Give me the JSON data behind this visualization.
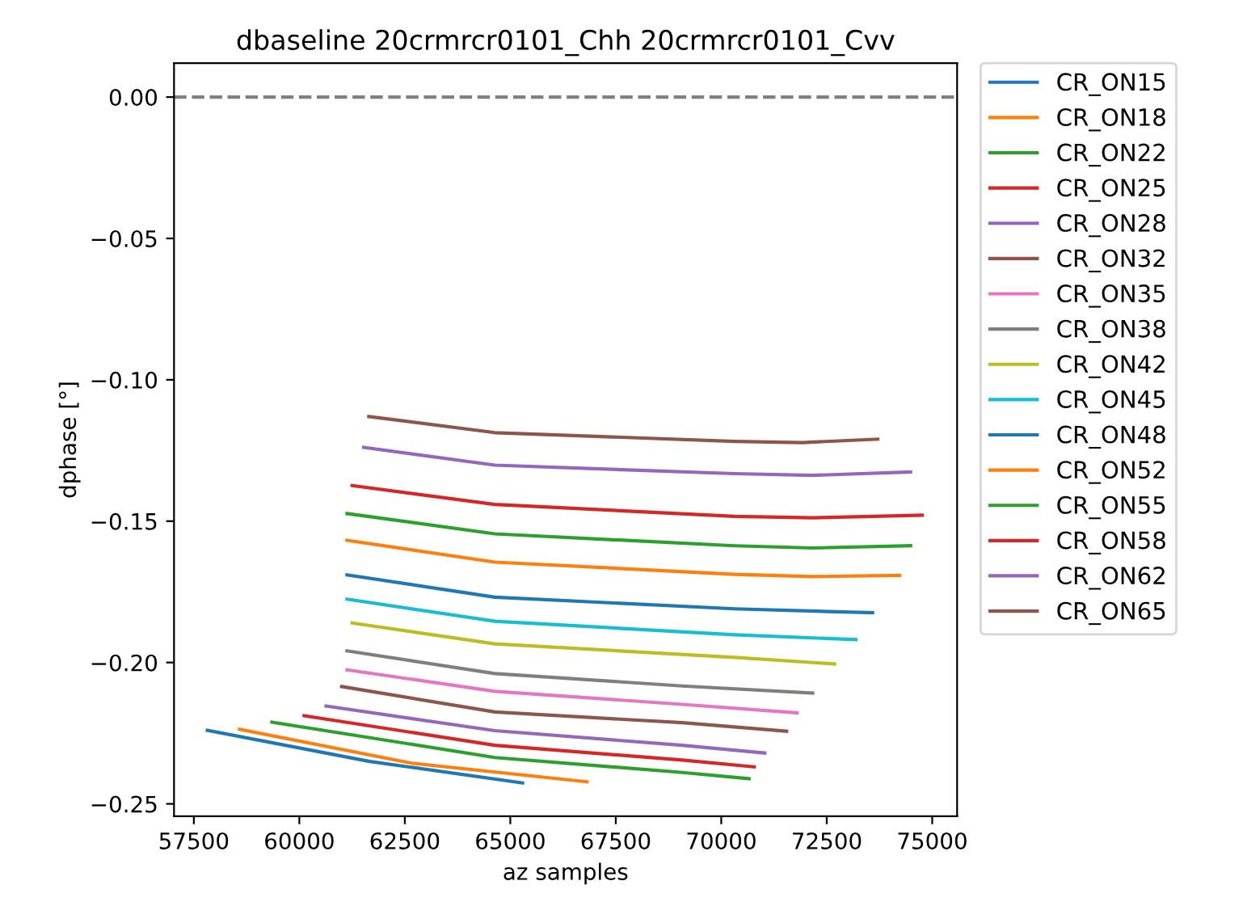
{
  "chart_data": {
    "type": "line",
    "title": "dbaseline 20crmrcr0101_Chh 20crmrcr0101_Cvv",
    "xlabel": "az samples",
    "ylabel": "dphase [°]",
    "xlim": [
      57030,
      75590
    ],
    "ylim": [
      -0.2544,
      0.012
    ],
    "xticks": [
      57500,
      60000,
      62500,
      65000,
      67500,
      70000,
      72500,
      75000
    ],
    "yticks": [
      {
        "value": 0,
        "label": "0.00"
      },
      {
        "value": -0.05,
        "label": "−0.05"
      },
      {
        "value": -0.1,
        "label": "−0.10"
      },
      {
        "value": -0.15,
        "label": "−0.15"
      },
      {
        "value": -0.2,
        "label": "−0.20"
      },
      {
        "value": -0.25,
        "label": "−0.25"
      }
    ],
    "grid": false,
    "legend": "right",
    "marker": "none",
    "line_style": "solid",
    "ref_lines": [
      {
        "axis": "y",
        "value": 0,
        "color": "#808080",
        "line_style": "dashed"
      }
    ],
    "series": [
      {
        "name": "CR_ON15",
        "color": "#1f77b4",
        "x": [
          57819,
          61671,
          65290
        ],
        "values": [
          -0.224,
          -0.235,
          -0.2426
        ]
      },
      {
        "name": "CR_ON18",
        "color": "#ff7f0e",
        "x": [
          58585,
          62660,
          66819
        ],
        "values": [
          -0.2236,
          -0.2356,
          -0.2422
        ]
      },
      {
        "name": "CR_ON22",
        "color": "#2ca02c",
        "x": [
          59352,
          64634,
          69079,
          70660
        ],
        "values": [
          -0.2211,
          -0.2336,
          -0.2389,
          -0.2411
        ]
      },
      {
        "name": "CR_ON25",
        "color": "#d62728",
        "x": [
          60115,
          64634,
          69079,
          70782
        ],
        "values": [
          -0.2188,
          -0.2293,
          -0.2345,
          -0.2369
        ]
      },
      {
        "name": "CR_ON28",
        "color": "#9467bd",
        "x": [
          60634,
          64634,
          69079,
          71031
        ],
        "values": [
          -0.2154,
          -0.2241,
          -0.2293,
          -0.232
        ]
      },
      {
        "name": "CR_ON32",
        "color": "#8c564b",
        "x": [
          61004,
          64634,
          69079,
          71549
        ],
        "values": [
          -0.2085,
          -0.2175,
          -0.2213,
          -0.2243
        ]
      },
      {
        "name": "CR_ON35",
        "color": "#e377c2",
        "x": [
          61130,
          64634,
          69079,
          71797
        ],
        "values": [
          -0.2026,
          -0.2102,
          -0.2148,
          -0.2178
        ]
      },
      {
        "name": "CR_ON38",
        "color": "#7f7f7f",
        "x": [
          61130,
          64634,
          69079,
          72168
        ],
        "values": [
          -0.1959,
          -0.2039,
          -0.2083,
          -0.2108
        ]
      },
      {
        "name": "CR_ON42",
        "color": "#bcbd22",
        "x": [
          61252,
          64634,
          70316,
          72686
        ],
        "values": [
          -0.186,
          -0.1934,
          -0.1982,
          -0.2005
        ]
      },
      {
        "name": "CR_ON45",
        "color": "#17becf",
        "x": [
          61130,
          64634,
          70316,
          73190
        ],
        "values": [
          -0.1776,
          -0.1854,
          -0.1902,
          -0.1919
        ]
      },
      {
        "name": "CR_ON48",
        "color": "#1f77b4",
        "x": [
          61130,
          64634,
          70316,
          73587
        ],
        "values": [
          -0.169,
          -0.1769,
          -0.181,
          -0.1824
        ]
      },
      {
        "name": "CR_ON52",
        "color": "#ff7f0e",
        "x": [
          61130,
          64634,
          70316,
          72168,
          74227
        ],
        "values": [
          -0.1568,
          -0.1645,
          -0.1688,
          -0.1696,
          -0.1692
        ]
      },
      {
        "name": "CR_ON55",
        "color": "#2ca02c",
        "x": [
          61130,
          64634,
          70316,
          72168,
          74487
        ],
        "values": [
          -0.1473,
          -0.1545,
          -0.1587,
          -0.1595,
          -0.1587
        ]
      },
      {
        "name": "CR_ON58",
        "color": "#d62728",
        "x": [
          61252,
          64634,
          70316,
          72168,
          74761
        ],
        "values": [
          -0.1374,
          -0.1441,
          -0.1483,
          -0.1488,
          -0.1479
        ]
      },
      {
        "name": "CR_ON62",
        "color": "#9467bd",
        "x": [
          61523,
          64634,
          70316,
          72168,
          74487
        ],
        "values": [
          -0.1239,
          -0.1302,
          -0.1332,
          -0.1338,
          -0.1326
        ]
      },
      {
        "name": "CR_ON65",
        "color": "#8c564b",
        "x": [
          61648,
          64634,
          70316,
          71920,
          73709
        ],
        "values": [
          -0.113,
          -0.1187,
          -0.1218,
          -0.1222,
          -0.121
        ]
      }
    ]
  }
}
